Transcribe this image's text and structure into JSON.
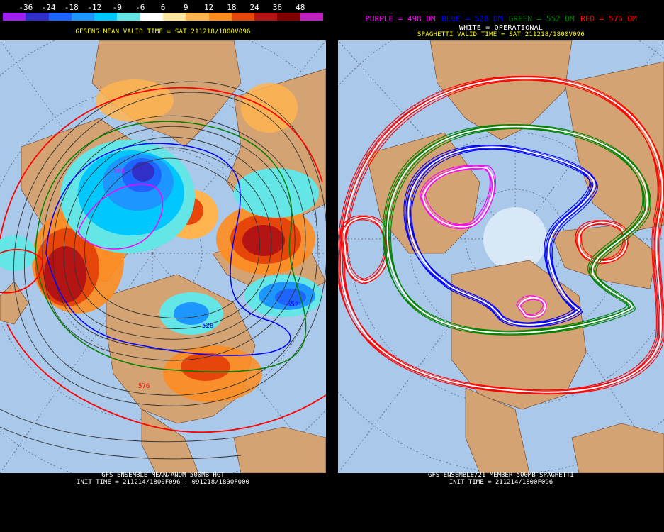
{
  "left_panel": {
    "colorbar": {
      "ticks": [
        "-36",
        "-24",
        "-18",
        "-12",
        "-9",
        "-6",
        "6",
        "9",
        "12",
        "18",
        "24",
        "36",
        "48"
      ],
      "colors": [
        "#a020f0",
        "#3030c8",
        "#1e64ff",
        "#1e96ff",
        "#00c8ff",
        "#64e6e6",
        "#ffffff",
        "#ffe6a0",
        "#ffb450",
        "#ff8c1e",
        "#e6460a",
        "#b41414",
        "#800000",
        "#c020c0"
      ]
    },
    "title": "GFSENS MEAN VALID TIME = SAT 211218/1800V096",
    "footer_line1": "GFS ENSEMBLE MEAN/ANOM 500MB HGT",
    "footer_line2": "INIT TIME = 211214/1800F096 : 091218/1800F000",
    "contour_labels": {
      "l498": "498",
      "l552": "552",
      "l528": "528",
      "l576": "576"
    }
  },
  "right_panel": {
    "legend": {
      "purple": "PURPLE = 498 DM",
      "blue": "BLUE = 528 DM",
      "green": "GREEN = 552 DM",
      "red": "RED = 576 DM"
    },
    "white_label": "WHITE = OPERATIONAL",
    "title": "SPAGHETTI VALID TIME = SAT 211218/1800V096",
    "footer_line1": "GFS ENSEMBLE/21 MEMBER 500MB SPAGHETTI",
    "footer_line2": "INIT TIME = 211214/1800F096"
  },
  "colors": {
    "ocean": "#a9c8ea",
    "land": "#d4a373",
    "title_yellow": "#ffff00",
    "purple": "#ff00ff",
    "blue": "#0000ff",
    "green": "#008000",
    "red": "#ff0000"
  }
}
